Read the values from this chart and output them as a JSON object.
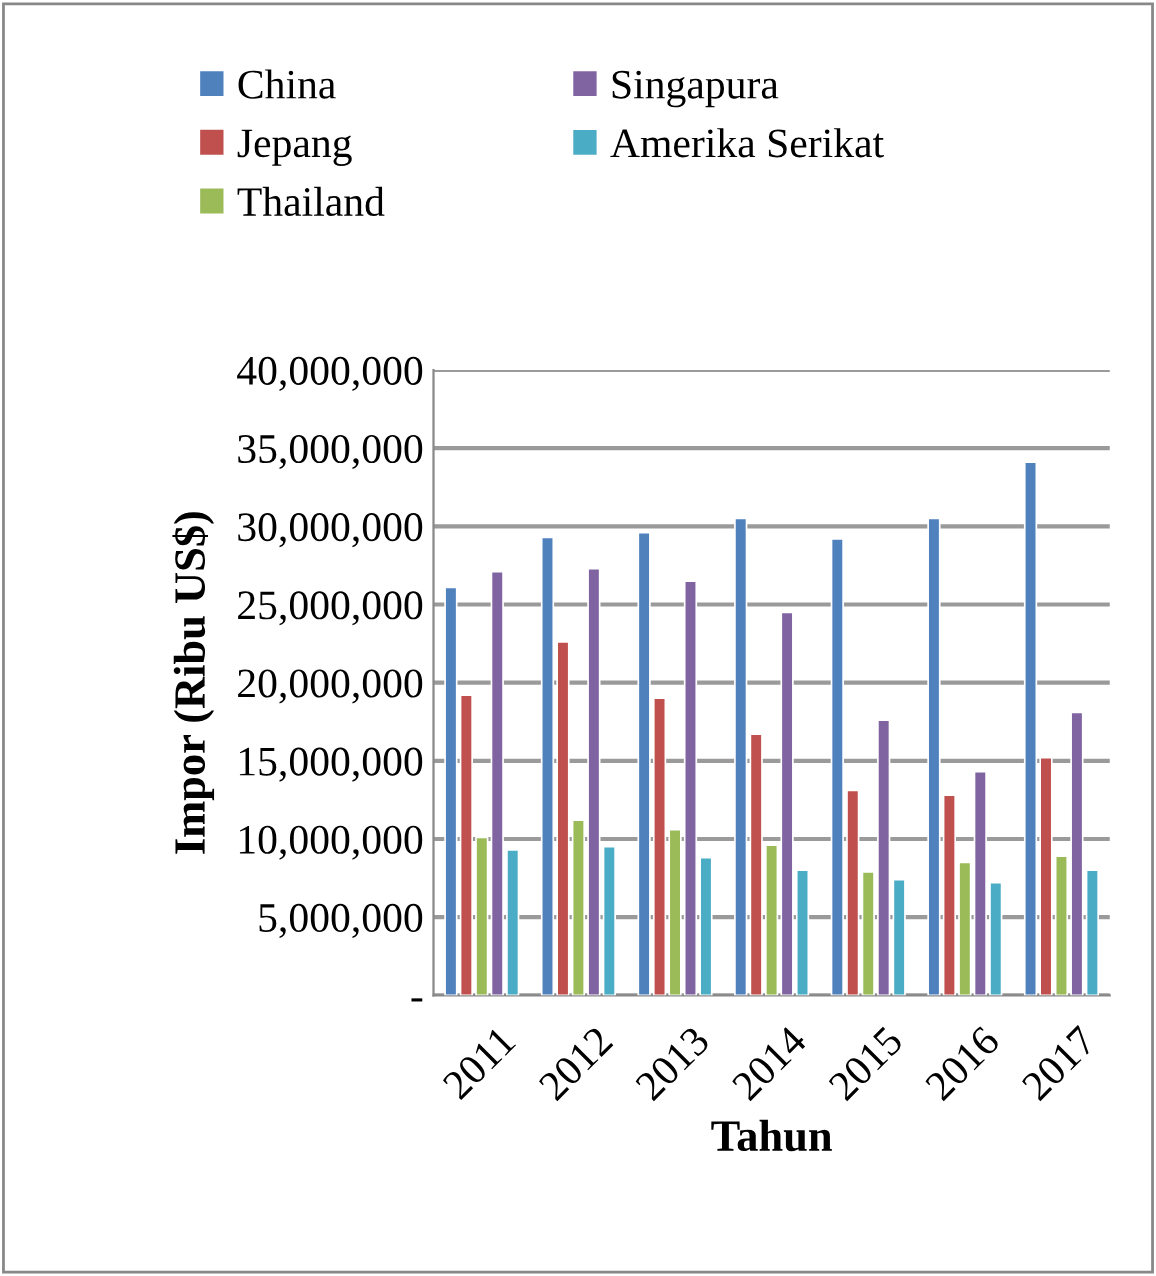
{
  "chart_data": {
    "type": "bar",
    "xlabel": "Tahun",
    "ylabel": "Impor (Ribu US$)",
    "categories": [
      "2011",
      "2012",
      "2013",
      "2014",
      "2015",
      "2016",
      "2017"
    ],
    "series": [
      {
        "name": "China",
        "color": "#4f81bd",
        "values": [
          26100000,
          29300000,
          29600000,
          30500000,
          29200000,
          30500000,
          34100000
        ]
      },
      {
        "name": "Jepang",
        "color": "#c0504d",
        "values": [
          19200000,
          22600000,
          19000000,
          16700000,
          13100000,
          12800000,
          15200000
        ]
      },
      {
        "name": "Thailand",
        "color": "#9bbb59",
        "values": [
          10100000,
          11200000,
          10600000,
          9600000,
          7900000,
          8500000,
          8900000
        ]
      },
      {
        "name": "Singapura",
        "color": "#8064a2",
        "values": [
          27100000,
          27300000,
          26500000,
          24500000,
          17600000,
          14300000,
          18100000
        ]
      },
      {
        "name": "Amerika Serikat",
        "color": "#4bacc6",
        "values": [
          9300000,
          9500000,
          8800000,
          8000000,
          7400000,
          7200000,
          8000000
        ]
      }
    ],
    "ylim": [
      0,
      40000000
    ],
    "yticks": [
      {
        "value": 0,
        "label": "-"
      },
      {
        "value": 5000000,
        "label": "5,000,000"
      },
      {
        "value": 10000000,
        "label": "10,000,000"
      },
      {
        "value": 15000000,
        "label": "15,000,000"
      },
      {
        "value": 20000000,
        "label": "20,000,000"
      },
      {
        "value": 25000000,
        "label": "25,000,000"
      },
      {
        "value": 30000000,
        "label": "30,000,000"
      },
      {
        "value": 35000000,
        "label": "35,000,000"
      },
      {
        "value": 40000000,
        "label": "40,000,000"
      }
    ],
    "grid": "y",
    "legend": "top"
  }
}
